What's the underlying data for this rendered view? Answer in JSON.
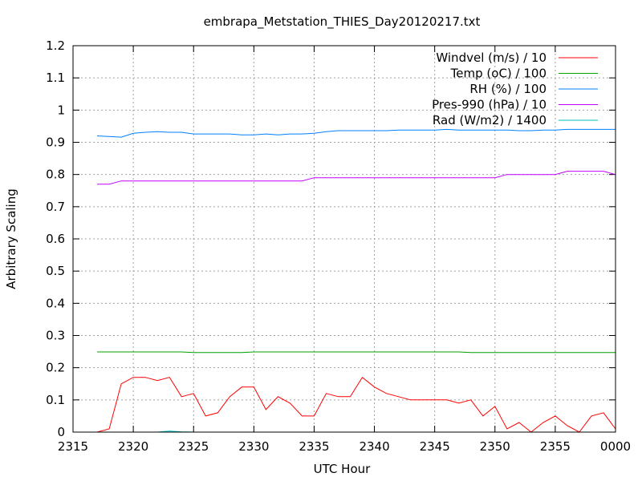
{
  "chart_data": {
    "type": "line",
    "title": "embrapa_Metstation_THIES_Day20120217.txt",
    "xlabel": "UTC Hour",
    "ylabel": "Arbitrary Scaling",
    "x_ticks": [
      "2315",
      "2320",
      "2325",
      "2330",
      "2335",
      "2340",
      "2345",
      "2350",
      "2355",
      "0000"
    ],
    "y_ticks": [
      "0",
      "0.1",
      "0.2",
      "0.3",
      "0.4",
      "0.5",
      "0.6",
      "0.7",
      "0.8",
      "0.9",
      "1",
      "1.1",
      "1.2"
    ],
    "xlim": [
      2315,
      2360
    ],
    "ylim": [
      0,
      1.2
    ],
    "grid": true,
    "legend_position": "top-right",
    "x": [
      2317,
      2318,
      2319,
      2320,
      2321,
      2322,
      2323,
      2324,
      2325,
      2326,
      2327,
      2328,
      2329,
      2330,
      2331,
      2332,
      2333,
      2334,
      2335,
      2336,
      2337,
      2338,
      2339,
      2340,
      2341,
      2342,
      2343,
      2344,
      2345,
      2346,
      2347,
      2348,
      2349,
      2350,
      2351,
      2352,
      2353,
      2354,
      2355,
      2356,
      2357,
      2358,
      2359,
      2360
    ],
    "series": [
      {
        "name": "Windvel (m/s) / 10",
        "color": "#ff0000",
        "values": [
          0.0,
          0.01,
          0.15,
          0.17,
          0.17,
          0.16,
          0.17,
          0.11,
          0.12,
          0.05,
          0.06,
          0.11,
          0.14,
          0.14,
          0.07,
          0.11,
          0.09,
          0.05,
          0.05,
          0.12,
          0.11,
          0.11,
          0.17,
          0.14,
          0.12,
          0.11,
          0.1,
          0.1,
          0.1,
          0.1,
          0.09,
          0.1,
          0.05,
          0.08,
          0.01,
          0.03,
          0.0,
          0.03,
          0.05,
          0.02,
          0.0,
          0.05,
          0.06,
          0.01
        ]
      },
      {
        "name": "Temp (oC) / 100",
        "color": "#00a000",
        "values": [
          0.249,
          0.249,
          0.249,
          0.249,
          0.249,
          0.249,
          0.249,
          0.249,
          0.247,
          0.247,
          0.247,
          0.247,
          0.247,
          0.249,
          0.249,
          0.249,
          0.249,
          0.249,
          0.249,
          0.249,
          0.249,
          0.249,
          0.249,
          0.249,
          0.249,
          0.249,
          0.249,
          0.249,
          0.249,
          0.249,
          0.249,
          0.247,
          0.247,
          0.247,
          0.247,
          0.247,
          0.247,
          0.247,
          0.247,
          0.247,
          0.247,
          0.247,
          0.247,
          0.247
        ]
      },
      {
        "name": "RH (%) / 100",
        "color": "#0080ff",
        "values": [
          0.92,
          0.918,
          0.916,
          0.928,
          0.931,
          0.933,
          0.931,
          0.931,
          0.926,
          0.926,
          0.926,
          0.926,
          0.923,
          0.923,
          0.926,
          0.923,
          0.926,
          0.926,
          0.928,
          0.933,
          0.936,
          0.936,
          0.936,
          0.936,
          0.936,
          0.938,
          0.938,
          0.938,
          0.938,
          0.94,
          0.938,
          0.938,
          0.938,
          0.938,
          0.938,
          0.936,
          0.936,
          0.938,
          0.938,
          0.94,
          0.94,
          0.94,
          0.94,
          0.94
        ]
      },
      {
        "name": "Pres-990 (hPa) / 10",
        "color": "#c000ff",
        "values": [
          0.77,
          0.77,
          0.78,
          0.78,
          0.78,
          0.78,
          0.78,
          0.78,
          0.78,
          0.78,
          0.78,
          0.78,
          0.78,
          0.78,
          0.78,
          0.78,
          0.78,
          0.78,
          0.79,
          0.79,
          0.79,
          0.79,
          0.79,
          0.79,
          0.79,
          0.79,
          0.79,
          0.79,
          0.79,
          0.79,
          0.79,
          0.79,
          0.79,
          0.79,
          0.8,
          0.8,
          0.8,
          0.8,
          0.8,
          0.81,
          0.81,
          0.81,
          0.81,
          0.8
        ]
      },
      {
        "name": "Rad (W/m2) / 1400",
        "color": "#00c0c0",
        "values": [
          0,
          0,
          0,
          0,
          0,
          0,
          0.003,
          0.001,
          0,
          0,
          0,
          0,
          0,
          0,
          0,
          0,
          0,
          0,
          0,
          0,
          0,
          0,
          0,
          0,
          0,
          0,
          0,
          0,
          0,
          0,
          0,
          0,
          0,
          0,
          0,
          0,
          0,
          0,
          0,
          0,
          0,
          0,
          0,
          0
        ]
      }
    ]
  }
}
